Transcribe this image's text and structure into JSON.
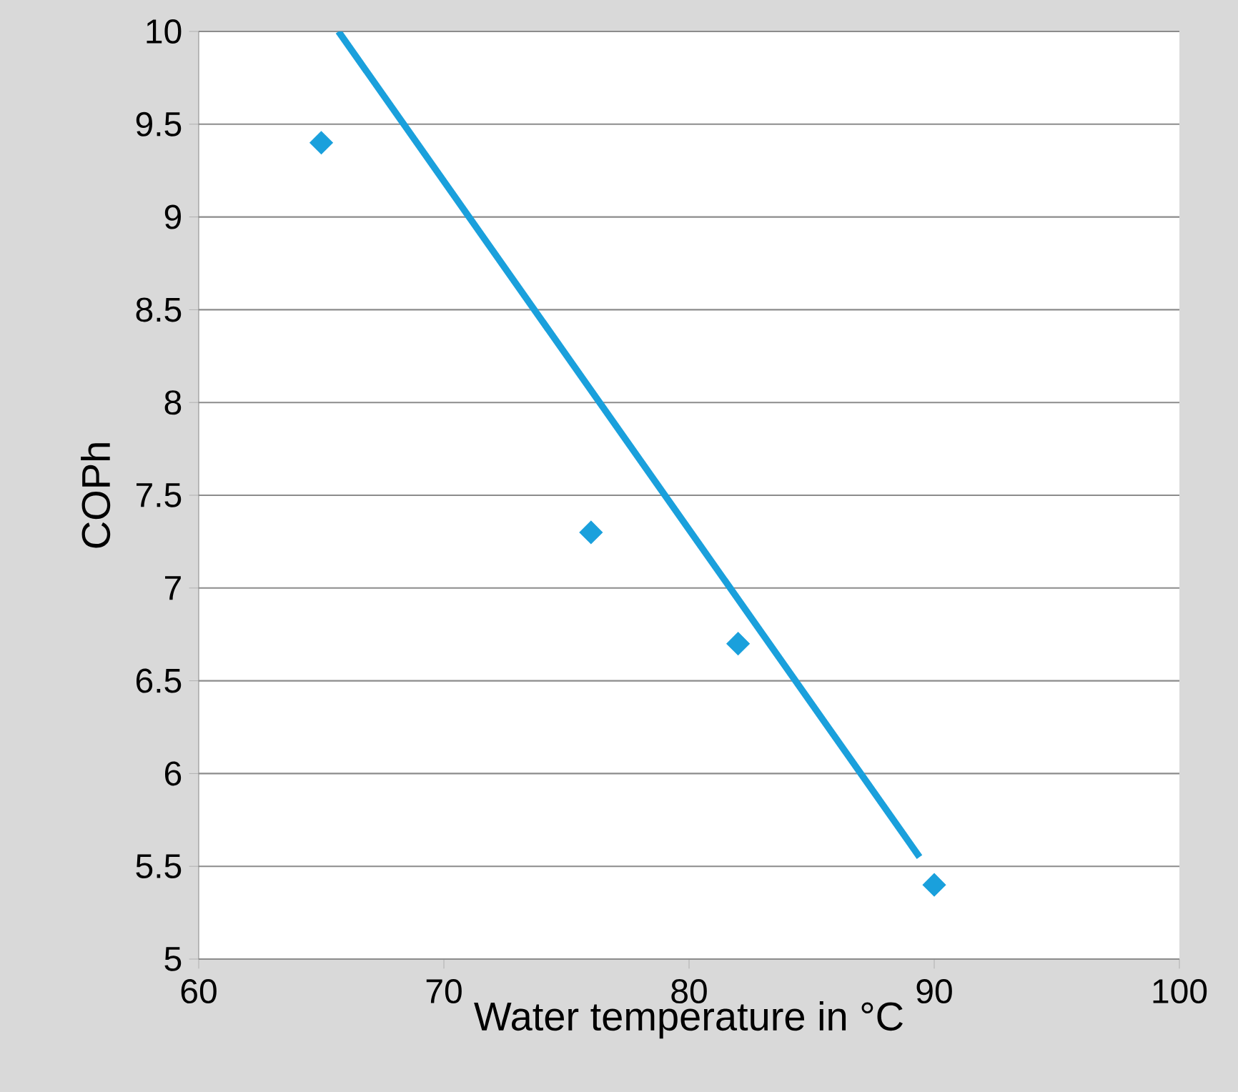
{
  "chart_data": {
    "type": "scatter",
    "xlabel": "Water temperature in °C",
    "ylabel": "COPh",
    "xlim": [
      60,
      100
    ],
    "ylim": [
      5,
      10
    ],
    "xticks": [
      60,
      70,
      80,
      90,
      100
    ],
    "yticks": [
      5,
      5.5,
      6,
      6.5,
      7,
      7.5,
      8,
      8.5,
      9,
      9.5,
      10
    ],
    "grid": "y",
    "marker": "diamond",
    "series": [
      {
        "color": "#1aa0dc",
        "x": [
          65,
          76,
          82,
          90
        ],
        "values": [
          9.4,
          7.3,
          6.7,
          5.4
        ]
      },
      {
        "type": "line",
        "color": "#1aa0dc",
        "x": [
          65.7,
          89.4
        ],
        "values": [
          10,
          5.55
        ],
        "line_style": "solid",
        "marker": "none"
      }
    ]
  }
}
